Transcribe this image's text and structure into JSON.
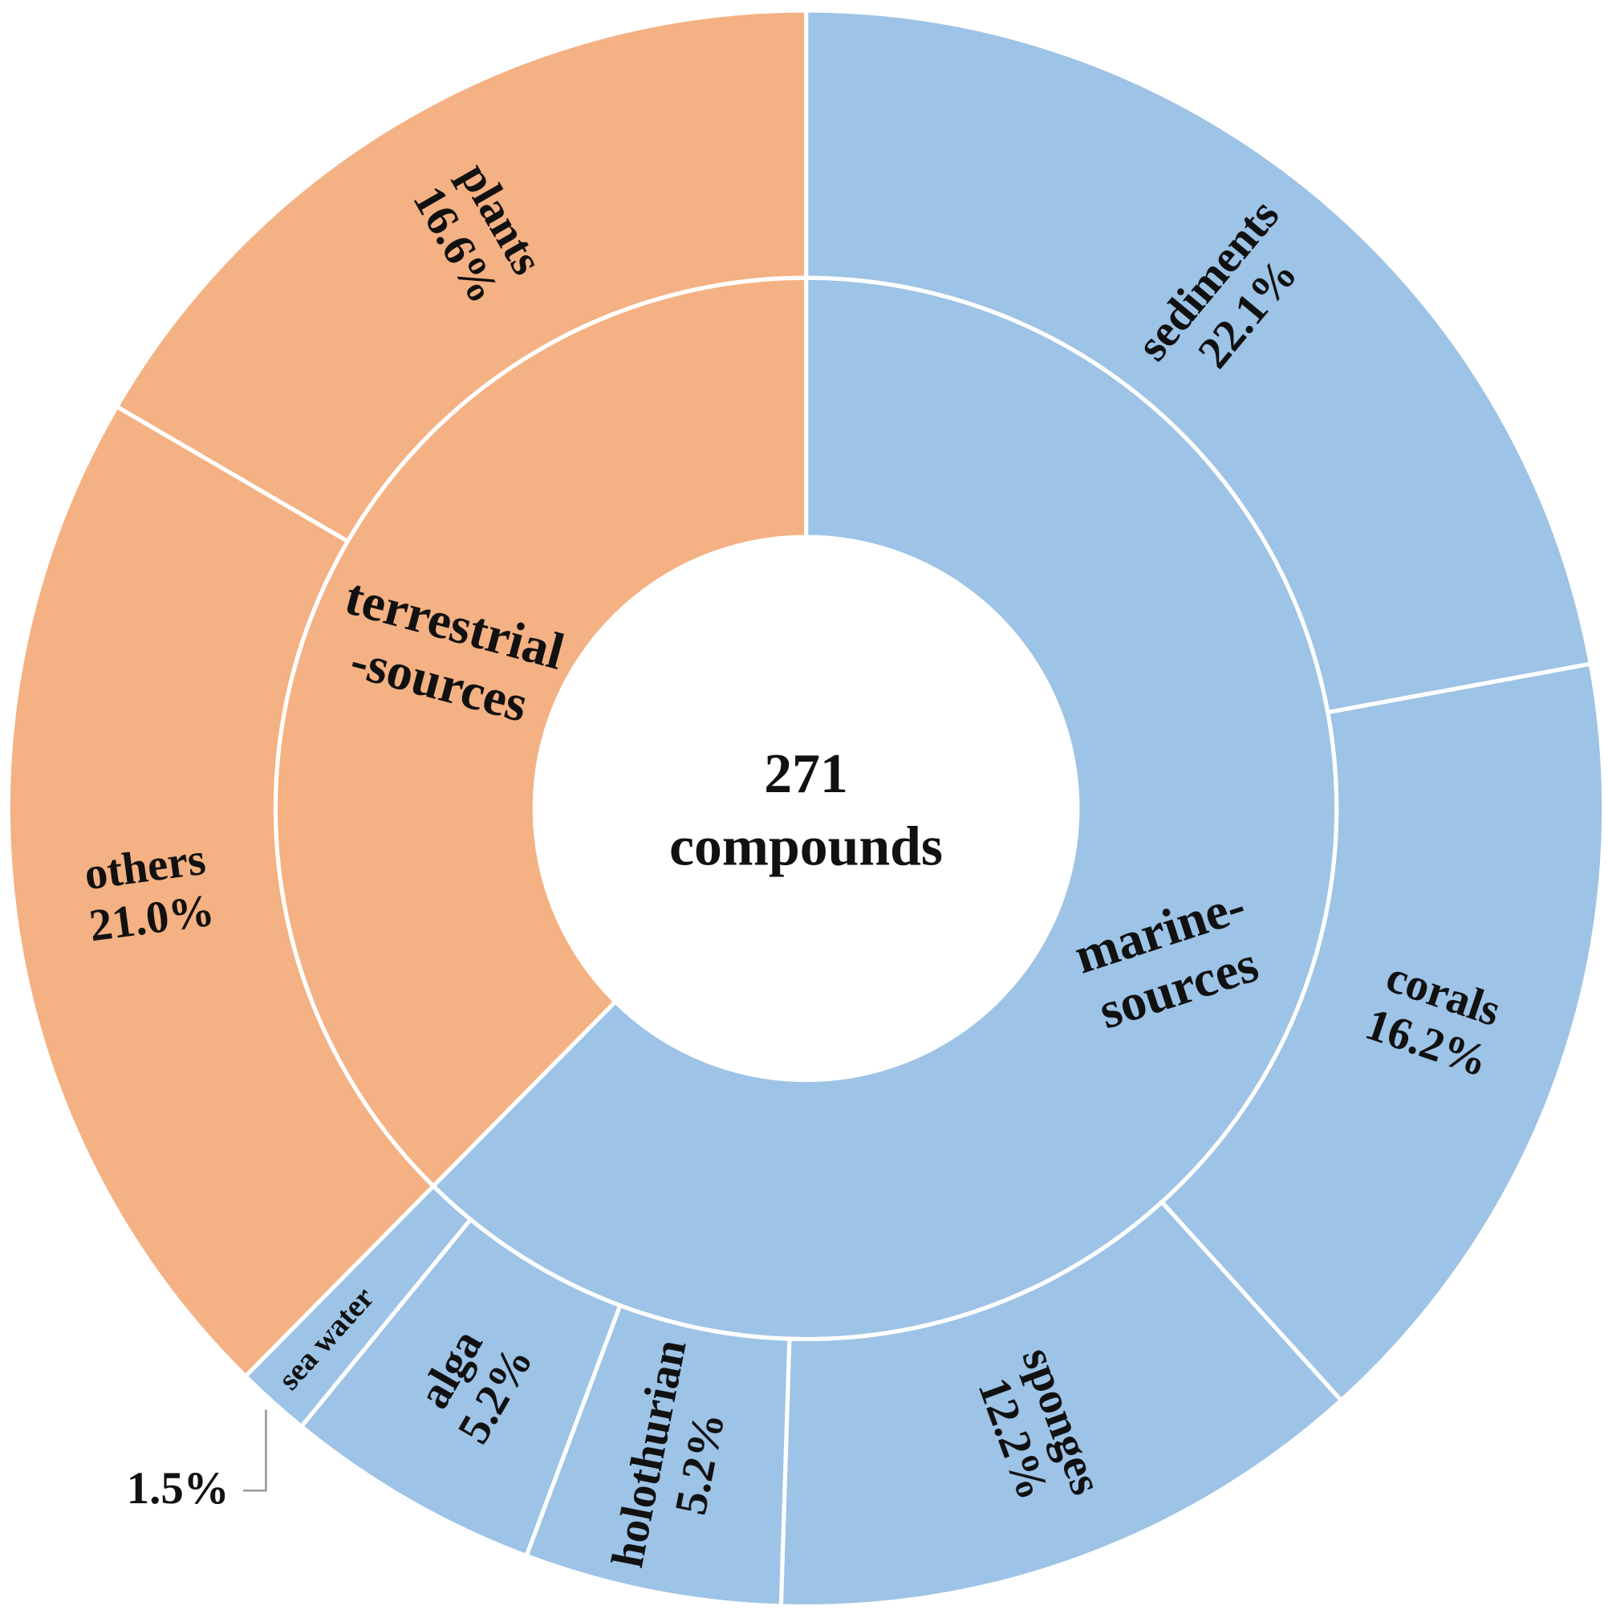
{
  "chart_data": {
    "type": "sunburst",
    "center_lines": [
      "271",
      "compounds"
    ],
    "groups": [
      {
        "name_lines": [
          "marine-",
          "sources"
        ],
        "color": "#9dc3e6",
        "children": [
          {
            "name": "sediments",
            "value": 22.1,
            "value_label": "22.1%"
          },
          {
            "name": "corals",
            "value": 16.2,
            "value_label": "16.2%"
          },
          {
            "name": "sponges",
            "value": 12.2,
            "value_label": "12.2%"
          },
          {
            "name": "holothurian",
            "value": 5.2,
            "value_label": "5.2%"
          },
          {
            "name": "alga",
            "value": 5.2,
            "value_label": "5.2%"
          },
          {
            "name": "sea water",
            "value": 1.5,
            "value_label": "1.5%"
          }
        ]
      },
      {
        "name_lines": [
          "terrestrial",
          "-sources"
        ],
        "color": "#f4b183",
        "children": [
          {
            "name": "others",
            "value": 21.0,
            "value_label": "21.0%"
          },
          {
            "name": "plants",
            "value": 16.6,
            "value_label": "16.6%"
          }
        ]
      }
    ]
  }
}
